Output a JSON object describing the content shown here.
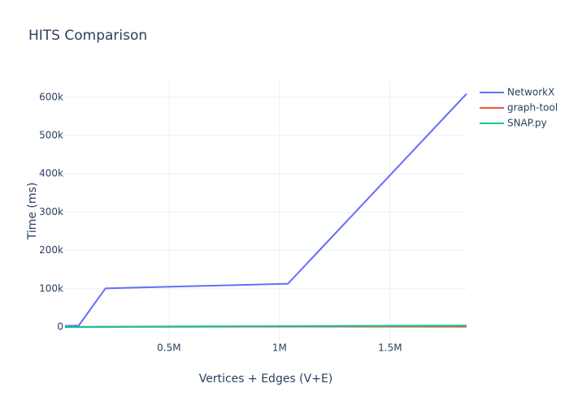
{
  "chart_data": {
    "type": "line",
    "title": "HITS Comparison",
    "x_label": "Vertices + Edges (V+E)",
    "y_label": "Time (ms)",
    "x": [
      30000,
      92000,
      213000,
      1038000,
      1846000
    ],
    "series": [
      {
        "name": "NetworkX",
        "color": "#636efa",
        "values": [
          3000,
          4000,
          101000,
          113000,
          609000
        ]
      },
      {
        "name": "graph-tool",
        "color": "#ef553b",
        "values": [
          100,
          200,
          400,
          1000,
          1500
        ]
      },
      {
        "name": "SNAP.py",
        "color": "#00cc96",
        "values": [
          200,
          400,
          800,
          2500,
          4000
        ]
      }
    ],
    "xlim": [
      30000,
      1846000
    ],
    "ylim": [
      -36000,
      642000
    ],
    "xticks": [
      {
        "value": 500000,
        "label": "0.5M"
      },
      {
        "value": 1000000,
        "label": "1M"
      },
      {
        "value": 1500000,
        "label": "1.5M"
      }
    ],
    "yticks": [
      0,
      {
        "value": 100000,
        "label": "100k"
      },
      {
        "value": 200000,
        "label": "200k"
      },
      {
        "value": 300000,
        "label": "300k"
      },
      {
        "value": 400000,
        "label": "400k"
      },
      {
        "value": 500000,
        "label": "500k"
      },
      {
        "value": 600000,
        "label": "600k"
      }
    ],
    "grid": true,
    "legend": "top-right"
  }
}
